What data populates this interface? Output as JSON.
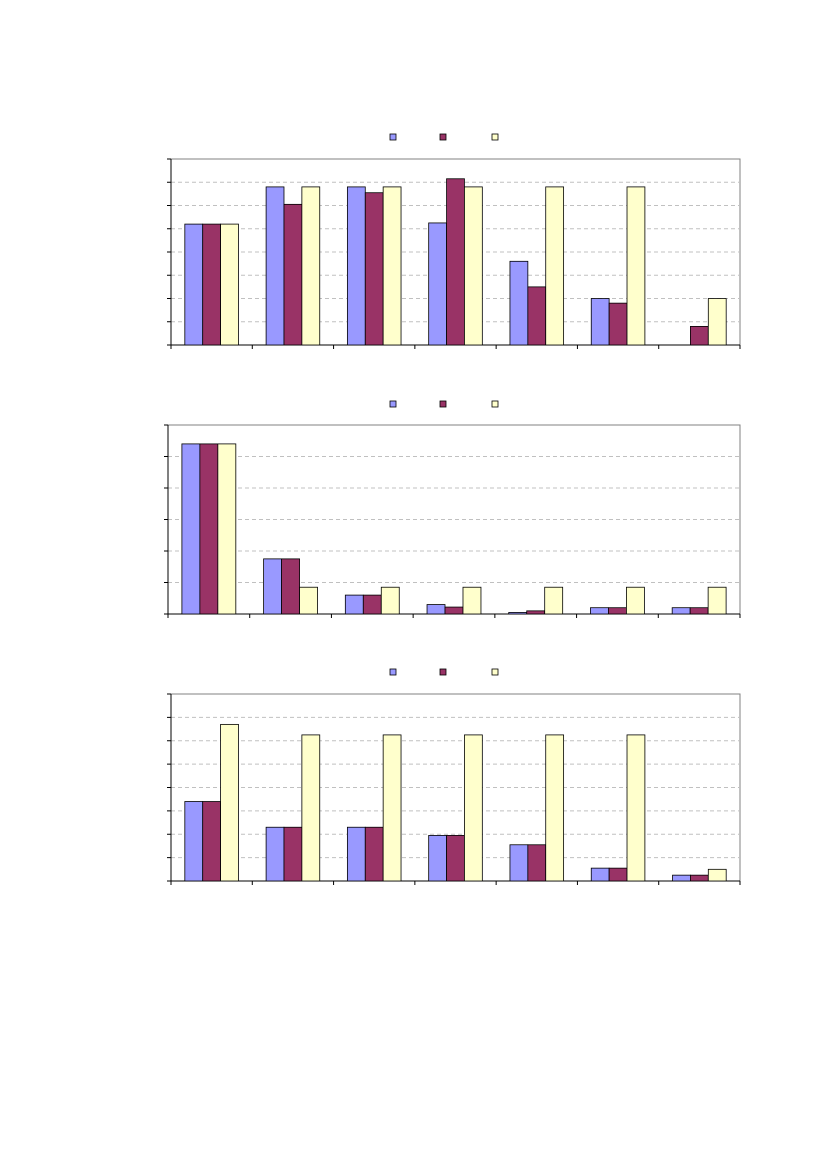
{
  "colors": {
    "series1": "#9999ff",
    "series2": "#993366",
    "series3": "#ffffcc",
    "outline": "#000000",
    "grid": "#c0c0c0",
    "plot_border": "#808080"
  },
  "chart_data": [
    {
      "type": "bar",
      "categories": [
        "",
        "",
        "",
        "",
        "",
        "",
        ""
      ],
      "series": [
        {
          "values": [
            5.2,
            6.8,
            6.8,
            5.25,
            3.6,
            2.0,
            0
          ]
        },
        {
          "values": [
            5.2,
            6.05,
            6.55,
            7.15,
            2.5,
            1.8,
            0.8
          ]
        },
        {
          "values": [
            5.2,
            6.8,
            6.8,
            6.8,
            6.8,
            6.8,
            2.0
          ]
        }
      ],
      "ylim": [
        0,
        8
      ],
      "yticks": 8,
      "grid": true,
      "legend": "top-center"
    },
    {
      "type": "bar",
      "categories": [
        "",
        "",
        "",
        "",
        "",
        "",
        ""
      ],
      "series": [
        {
          "values": [
            5.4,
            1.75,
            0.6,
            0.3,
            0.05,
            0.2,
            0.2
          ]
        },
        {
          "values": [
            5.4,
            1.75,
            0.6,
            0.22,
            0.1,
            0.2,
            0.2
          ]
        },
        {
          "values": [
            5.4,
            0.85,
            0.85,
            0.85,
            0.85,
            0.85,
            0.85
          ]
        }
      ],
      "ylim": [
        0,
        6
      ],
      "yticks": 6,
      "grid": true,
      "legend": "top-center"
    },
    {
      "type": "bar",
      "categories": [
        "",
        "",
        "",
        "",
        "",
        "",
        ""
      ],
      "series": [
        {
          "values": [
            3.4,
            2.3,
            2.3,
            1.95,
            1.55,
            0.55,
            0.25
          ]
        },
        {
          "values": [
            3.4,
            2.3,
            2.3,
            1.95,
            1.55,
            0.55,
            0.25
          ]
        },
        {
          "values": [
            6.7,
            6.25,
            6.25,
            6.25,
            6.25,
            6.25,
            0.5
          ]
        }
      ],
      "ylim": [
        0,
        8
      ],
      "yticks": 8,
      "grid": true,
      "legend": "top-center"
    }
  ]
}
